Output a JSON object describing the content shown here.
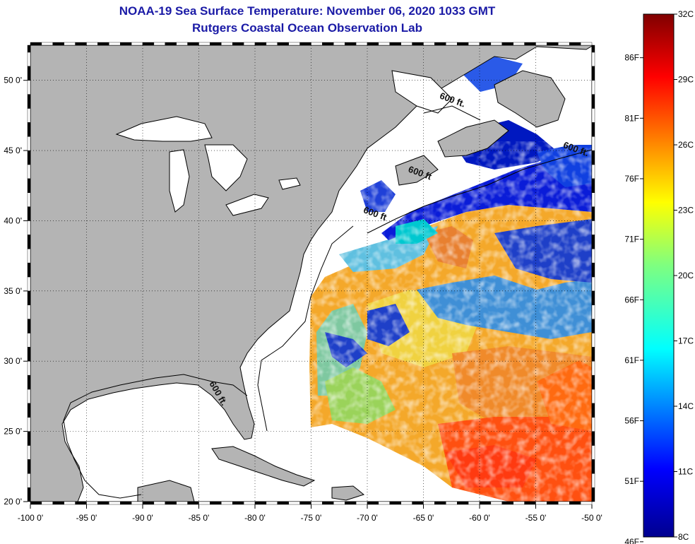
{
  "title": {
    "line1": "NOAA-19 Sea Surface Temperature:  November 06, 2020 1033 GMT",
    "line2": "Rutgers Coastal Ocean Observation Lab"
  },
  "map": {
    "lon_range": [
      -100,
      -50
    ],
    "lat_range": [
      20,
      52.5
    ],
    "lon_ticks": [
      {
        "value": -100,
        "label": "-100 0'"
      },
      {
        "value": -95,
        "label": "-95 0'"
      },
      {
        "value": -90,
        "label": "-90 0'"
      },
      {
        "value": -85,
        "label": "-85 0'"
      },
      {
        "value": -80,
        "label": "-80 0'"
      },
      {
        "value": -75,
        "label": "-75 0'"
      },
      {
        "value": -70,
        "label": "-70 0'"
      },
      {
        "value": -65,
        "label": "-65 0'"
      },
      {
        "value": -60,
        "label": "-60 0'"
      },
      {
        "value": -55,
        "label": "-55 0'"
      },
      {
        "value": -50,
        "label": "-50 0'"
      }
    ],
    "lat_ticks": [
      {
        "value": 50,
        "label": "50 0'"
      },
      {
        "value": 45,
        "label": "45 0'"
      },
      {
        "value": 40,
        "label": "40 0'"
      },
      {
        "value": 35,
        "label": "35 0'"
      },
      {
        "value": 30,
        "label": "30 0'"
      },
      {
        "value": 25,
        "label": "25 0'"
      },
      {
        "value": 20,
        "label": "20 0'"
      }
    ],
    "isobath_labels": [
      {
        "text": "600 ft.",
        "lon": -62.5,
        "lat": 48.4
      },
      {
        "text": "600 ft.",
        "lon": -51.5,
        "lat": 44.9
      },
      {
        "text": "600 ft",
        "lon": -65.4,
        "lat": 43.2
      },
      {
        "text": "600 ft",
        "lon": -69.4,
        "lat": 40.3
      },
      {
        "text": "600 ft.",
        "lon": -83.5,
        "lat": 27.6
      }
    ],
    "land_color": "#b4b4b4",
    "nodata_color": "#ffffff"
  },
  "colorbar": {
    "range_c": [
      8,
      32
    ],
    "celsius_ticks": [
      "32C",
      "29C",
      "26C",
      "23C",
      "20C",
      "17C",
      "14C",
      "11C",
      "8C"
    ],
    "fahrenheit_ticks": [
      "86F",
      "81F",
      "76F",
      "71F",
      "66F",
      "61F",
      "56F",
      "51F",
      "46F"
    ]
  }
}
